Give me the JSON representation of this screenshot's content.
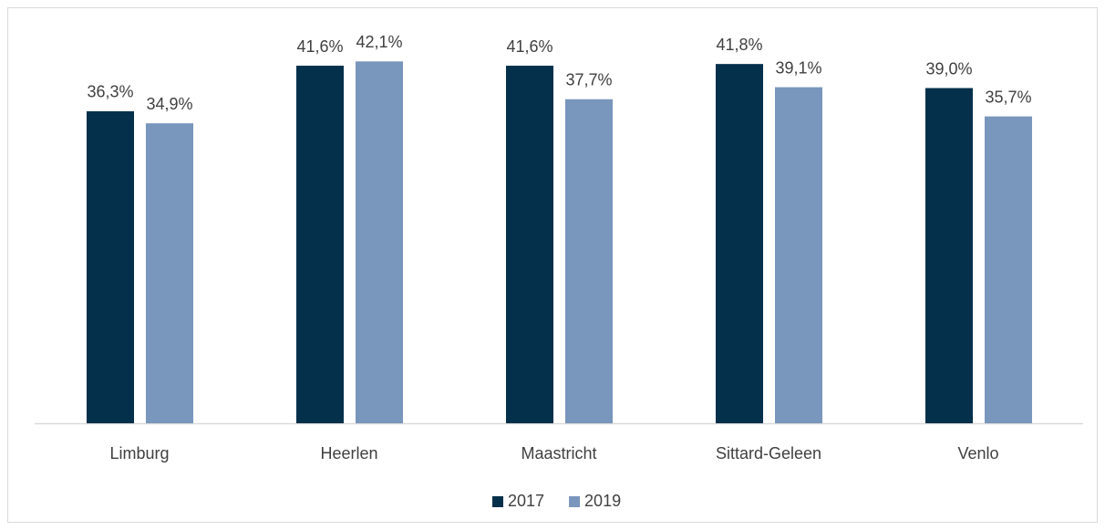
{
  "chart_data": {
    "type": "bar",
    "categories": [
      "Limburg",
      "Heerlen",
      "Maastricht",
      "Sittard-Geleen",
      "Venlo"
    ],
    "series": [
      {
        "name": "2017",
        "color": "#05304b",
        "values": [
          36.3,
          41.6,
          41.6,
          41.8,
          39.0
        ],
        "value_labels": [
          "36,3%",
          "41,6%",
          "41,6%",
          "41,8%",
          "39,0%"
        ]
      },
      {
        "name": "2019",
        "color": "#7996bc",
        "values": [
          34.9,
          42.1,
          37.7,
          39.1,
          35.7
        ],
        "value_labels": [
          "34,9%",
          "42,1%",
          "37,7%",
          "39,1%",
          "35,7%"
        ]
      }
    ],
    "ylim": [
      0,
      45
    ],
    "legend": "bottom"
  }
}
